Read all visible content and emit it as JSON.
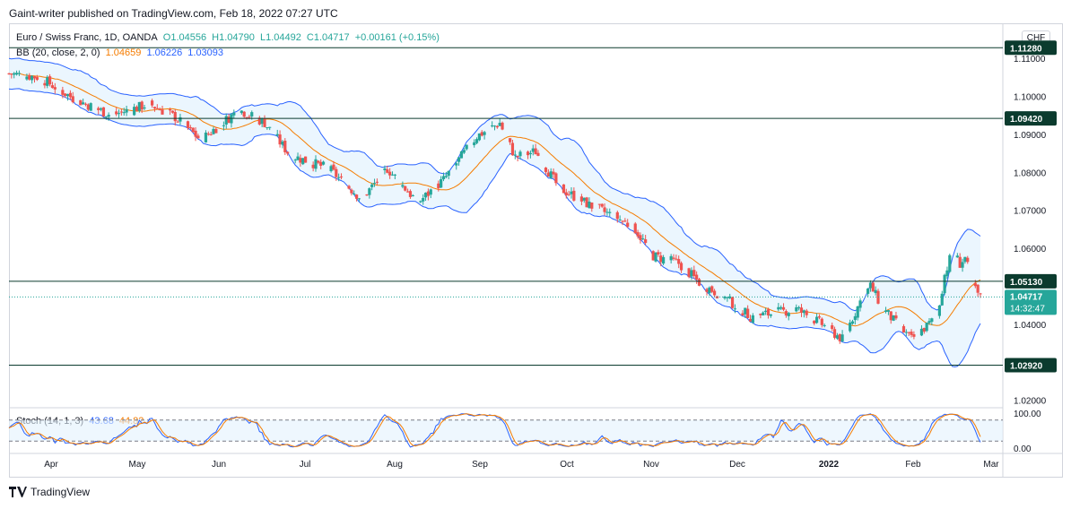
{
  "publisher": {
    "text": "Gaint-writer published on TradingView.com, Feb 18, 2022 07:27 UTC"
  },
  "legend": {
    "symbol": "Euro / Swiss Franc, 1D, OANDA",
    "open": "O1.04556",
    "high": "H1.04790",
    "low": "L1.04492",
    "close": "C1.04717",
    "change": "+0.00161 (+0.15%)",
    "bb_label": "BB (20, close, 2, 0)",
    "bb_basis": "1.04659",
    "bb_upper": "1.06226",
    "bb_lower": "1.03093",
    "stoch_label": "Stoch (14, 1, 3)",
    "stoch_k": "43.68",
    "stoch_d": "44.82"
  },
  "currency_badge": "CHF",
  "footer": {
    "brand": "TradingView"
  },
  "colors": {
    "up": "#26a69a",
    "down": "#ef5350",
    "bb_band": "#2962ff",
    "bb_fill": "#e3f2fd",
    "basis": "#f57c00",
    "level_line": "#0b3b2e",
    "stoch_k": "#2962ff",
    "stoch_d": "#f57c00"
  },
  "chart_data": [
    {
      "type": "candlestick",
      "ylim": [
        1.018,
        1.119
      ],
      "y_ticks": [
        "1.11000",
        "1.10000",
        "1.09000",
        "1.08000",
        "1.07000",
        "1.06000",
        "1.04000",
        "1.02000"
      ],
      "x_ticks": [
        "Apr",
        "May",
        "Jun",
        "Jul",
        "Aug",
        "Sep",
        "Oct",
        "Nov",
        "Dec",
        "2022",
        "Feb",
        "Mar"
      ],
      "horizontal_levels": [
        "1.11280",
        "1.09420",
        "1.05130",
        "1.02920"
      ],
      "last_price": "1.04717",
      "countdown": "14:32:47",
      "anchors": [
        {
          "d": 0,
          "p": 1.106
        },
        {
          "d": 12,
          "p": 1.105
        },
        {
          "d": 25,
          "p": 1.0995
        },
        {
          "d": 40,
          "p": 1.095
        },
        {
          "d": 55,
          "p": 1.098
        },
        {
          "d": 65,
          "p": 1.0945
        },
        {
          "d": 75,
          "p": 1.0885
        },
        {
          "d": 90,
          "p": 1.0965
        },
        {
          "d": 100,
          "p": 1.093
        },
        {
          "d": 110,
          "p": 1.0845
        },
        {
          "d": 125,
          "p": 1.081
        },
        {
          "d": 138,
          "p": 1.073
        },
        {
          "d": 148,
          "p": 1.081
        },
        {
          "d": 160,
          "p": 1.072
        },
        {
          "d": 170,
          "p": 1.078
        },
        {
          "d": 183,
          "p": 1.0895
        },
        {
          "d": 192,
          "p": 1.093
        },
        {
          "d": 198,
          "p": 1.084
        },
        {
          "d": 206,
          "p": 1.0855
        },
        {
          "d": 215,
          "p": 1.076
        },
        {
          "d": 228,
          "p": 1.071
        },
        {
          "d": 238,
          "p": 1.068
        },
        {
          "d": 245,
          "p": 1.065
        },
        {
          "d": 252,
          "p": 1.058
        },
        {
          "d": 262,
          "p": 1.056
        },
        {
          "d": 270,
          "p": 1.051
        },
        {
          "d": 280,
          "p": 1.047
        },
        {
          "d": 290,
          "p": 1.042
        },
        {
          "d": 300,
          "p": 1.043
        },
        {
          "d": 308,
          "p": 1.044
        },
        {
          "d": 318,
          "p": 1.04
        },
        {
          "d": 326,
          "p": 1.036
        },
        {
          "d": 333,
          "p": 1.046
        },
        {
          "d": 337,
          "p": 1.05
        },
        {
          "d": 342,
          "p": 1.044
        },
        {
          "d": 348,
          "p": 1.0395
        },
        {
          "d": 353,
          "p": 1.036
        },
        {
          "d": 359,
          "p": 1.0395
        },
        {
          "d": 363,
          "p": 1.042
        },
        {
          "d": 366,
          "p": 1.053
        },
        {
          "d": 369,
          "p": 1.059
        },
        {
          "d": 372,
          "p": 1.056
        },
        {
          "d": 374,
          "p": 1.0575
        },
        {
          "d": 377,
          "p": 1.05
        },
        {
          "d": 380,
          "p": 1.047
        }
      ]
    },
    {
      "type": "line",
      "name": "Stoch",
      "ylim": [
        0,
        100
      ],
      "y_ticks": [
        "100.00",
        "0.00"
      ],
      "bands": [
        80,
        20
      ]
    }
  ]
}
